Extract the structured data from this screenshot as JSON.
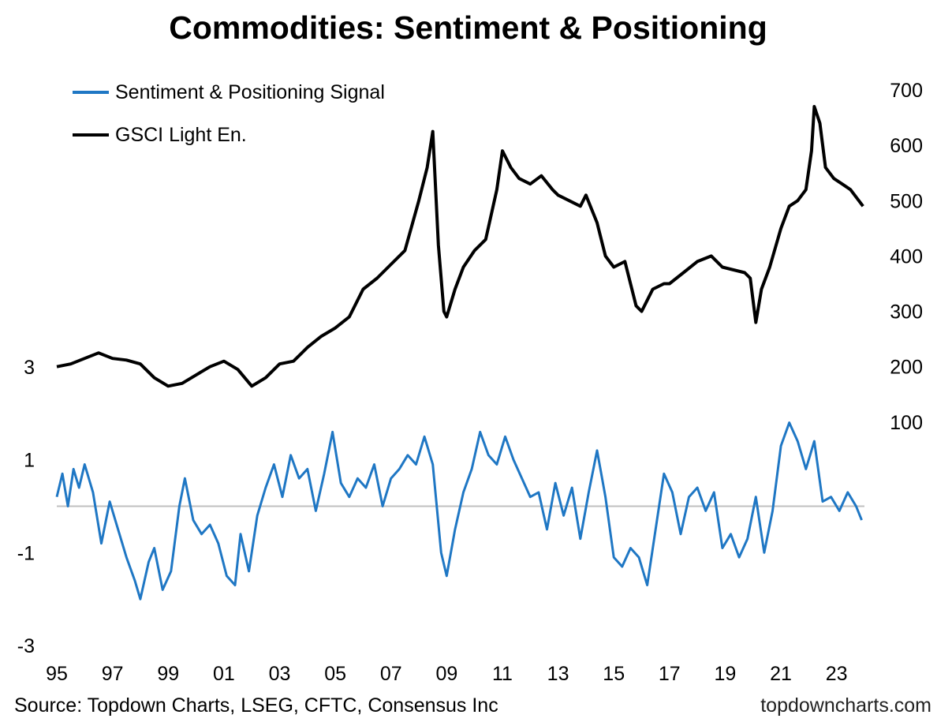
{
  "title": "Commodities: Sentiment & Positioning",
  "source": "Source: Topdown Charts, LSEG, CFTC, Consensus Inc",
  "brand": "topdowncharts.com",
  "colors": {
    "signal": "#1f77c4",
    "index": "#000000",
    "zero_line": "#bfbfbf"
  },
  "chart_data": {
    "type": "line",
    "title": "Commodities: Sentiment & Positioning",
    "legend": "top-left",
    "grid": false,
    "x_ticks": [
      "95",
      "97",
      "99",
      "01",
      "03",
      "05",
      "07",
      "09",
      "11",
      "13",
      "15",
      "17",
      "19",
      "21",
      "23"
    ],
    "xlim": [
      1995,
      2024
    ],
    "y_left": {
      "ticks": [
        "3",
        "1",
        "-1",
        "-3"
      ],
      "ylim": [
        -3,
        3
      ]
    },
    "y_right": {
      "ticks": [
        "700",
        "600",
        "500",
        "400",
        "300",
        "200",
        "100"
      ],
      "ylim": [
        0,
        700
      ]
    },
    "reference_line": 0,
    "series": [
      {
        "name": "Sentiment & Positioning Signal",
        "axis": "left",
        "color": "#1f77c4",
        "x": [
          1995.0,
          1995.2,
          1995.4,
          1995.6,
          1995.8,
          1996.0,
          1996.3,
          1996.6,
          1996.9,
          1997.2,
          1997.5,
          1997.8,
          1998.0,
          1998.3,
          1998.5,
          1998.8,
          1999.1,
          1999.4,
          1999.6,
          1999.9,
          2000.2,
          2000.5,
          2000.8,
          2001.1,
          2001.4,
          2001.6,
          2001.9,
          2002.2,
          2002.5,
          2002.8,
          2003.1,
          2003.4,
          2003.7,
          2004.0,
          2004.3,
          2004.6,
          2004.9,
          2005.2,
          2005.5,
          2005.8,
          2006.1,
          2006.4,
          2006.7,
          2007.0,
          2007.3,
          2007.6,
          2007.9,
          2008.2,
          2008.5,
          2008.8,
          2009.0,
          2009.3,
          2009.6,
          2009.9,
          2010.2,
          2010.5,
          2010.8,
          2011.1,
          2011.4,
          2011.7,
          2012.0,
          2012.3,
          2012.6,
          2012.9,
          2013.2,
          2013.5,
          2013.8,
          2014.1,
          2014.4,
          2014.7,
          2015.0,
          2015.3,
          2015.6,
          2015.9,
          2016.2,
          2016.5,
          2016.8,
          2017.1,
          2017.4,
          2017.7,
          2018.0,
          2018.3,
          2018.6,
          2018.9,
          2019.2,
          2019.5,
          2019.8,
          2020.1,
          2020.4,
          2020.7,
          2021.0,
          2021.3,
          2021.6,
          2021.9,
          2022.2,
          2022.5,
          2022.8,
          2023.1,
          2023.4,
          2023.7,
          2023.9
        ],
        "values": [
          0.2,
          0.7,
          0.0,
          0.8,
          0.4,
          0.9,
          0.3,
          -0.8,
          0.1,
          -0.5,
          -1.1,
          -1.6,
          -2.0,
          -1.2,
          -0.9,
          -1.8,
          -1.4,
          0.0,
          0.6,
          -0.3,
          -0.6,
          -0.4,
          -0.8,
          -1.5,
          -1.7,
          -0.6,
          -1.4,
          -0.2,
          0.4,
          0.9,
          0.2,
          1.1,
          0.6,
          0.8,
          -0.1,
          0.7,
          1.6,
          0.5,
          0.2,
          0.6,
          0.4,
          0.9,
          0.0,
          0.6,
          0.8,
          1.1,
          0.9,
          1.5,
          0.9,
          -1.0,
          -1.5,
          -0.5,
          0.3,
          0.8,
          1.6,
          1.1,
          0.9,
          1.5,
          1.0,
          0.6,
          0.2,
          0.3,
          -0.5,
          0.5,
          -0.2,
          0.4,
          -0.7,
          0.3,
          1.2,
          0.2,
          -1.1,
          -1.3,
          -0.9,
          -1.1,
          -1.7,
          -0.5,
          0.7,
          0.3,
          -0.6,
          0.2,
          0.4,
          -0.1,
          0.3,
          -0.9,
          -0.6,
          -1.1,
          -0.7,
          0.2,
          -1.0,
          -0.1,
          1.3,
          1.8,
          1.4,
          0.8,
          1.4,
          0.1,
          0.2,
          -0.1,
          0.3,
          0.0,
          -0.3
        ]
      },
      {
        "name": "GSCI Light En.",
        "axis": "right",
        "color": "#000000",
        "x": [
          1995.0,
          1995.5,
          1996.0,
          1996.5,
          1997.0,
          1997.5,
          1998.0,
          1998.5,
          1999.0,
          1999.5,
          2000.0,
          2000.5,
          2001.0,
          2001.5,
          2002.0,
          2002.5,
          2003.0,
          2003.5,
          2004.0,
          2004.5,
          2005.0,
          2005.5,
          2006.0,
          2006.5,
          2007.0,
          2007.5,
          2008.0,
          2008.3,
          2008.5,
          2008.7,
          2008.9,
          2009.0,
          2009.3,
          2009.6,
          2010.0,
          2010.4,
          2010.8,
          2011.0,
          2011.3,
          2011.6,
          2012.0,
          2012.4,
          2012.8,
          2013.0,
          2013.4,
          2013.8,
          2014.0,
          2014.4,
          2014.7,
          2015.0,
          2015.4,
          2015.8,
          2016.0,
          2016.4,
          2016.8,
          2017.0,
          2017.5,
          2018.0,
          2018.5,
          2018.9,
          2019.3,
          2019.7,
          2019.9,
          2020.1,
          2020.3,
          2020.6,
          2021.0,
          2021.3,
          2021.6,
          2021.9,
          2022.1,
          2022.2,
          2022.4,
          2022.6,
          2022.9,
          2023.2,
          2023.5,
          2023.8,
          2023.95
        ],
        "values": [
          200,
          205,
          215,
          225,
          215,
          212,
          205,
          180,
          165,
          170,
          185,
          200,
          210,
          195,
          165,
          180,
          205,
          210,
          235,
          255,
          270,
          290,
          340,
          360,
          385,
          410,
          500,
          560,
          625,
          420,
          300,
          290,
          340,
          380,
          410,
          430,
          520,
          590,
          560,
          540,
          530,
          545,
          520,
          510,
          500,
          490,
          510,
          460,
          400,
          380,
          390,
          310,
          300,
          340,
          350,
          350,
          370,
          390,
          400,
          380,
          375,
          370,
          360,
          280,
          340,
          380,
          450,
          490,
          500,
          520,
          590,
          670,
          640,
          560,
          540,
          530,
          520,
          500,
          490
        ]
      }
    ]
  }
}
